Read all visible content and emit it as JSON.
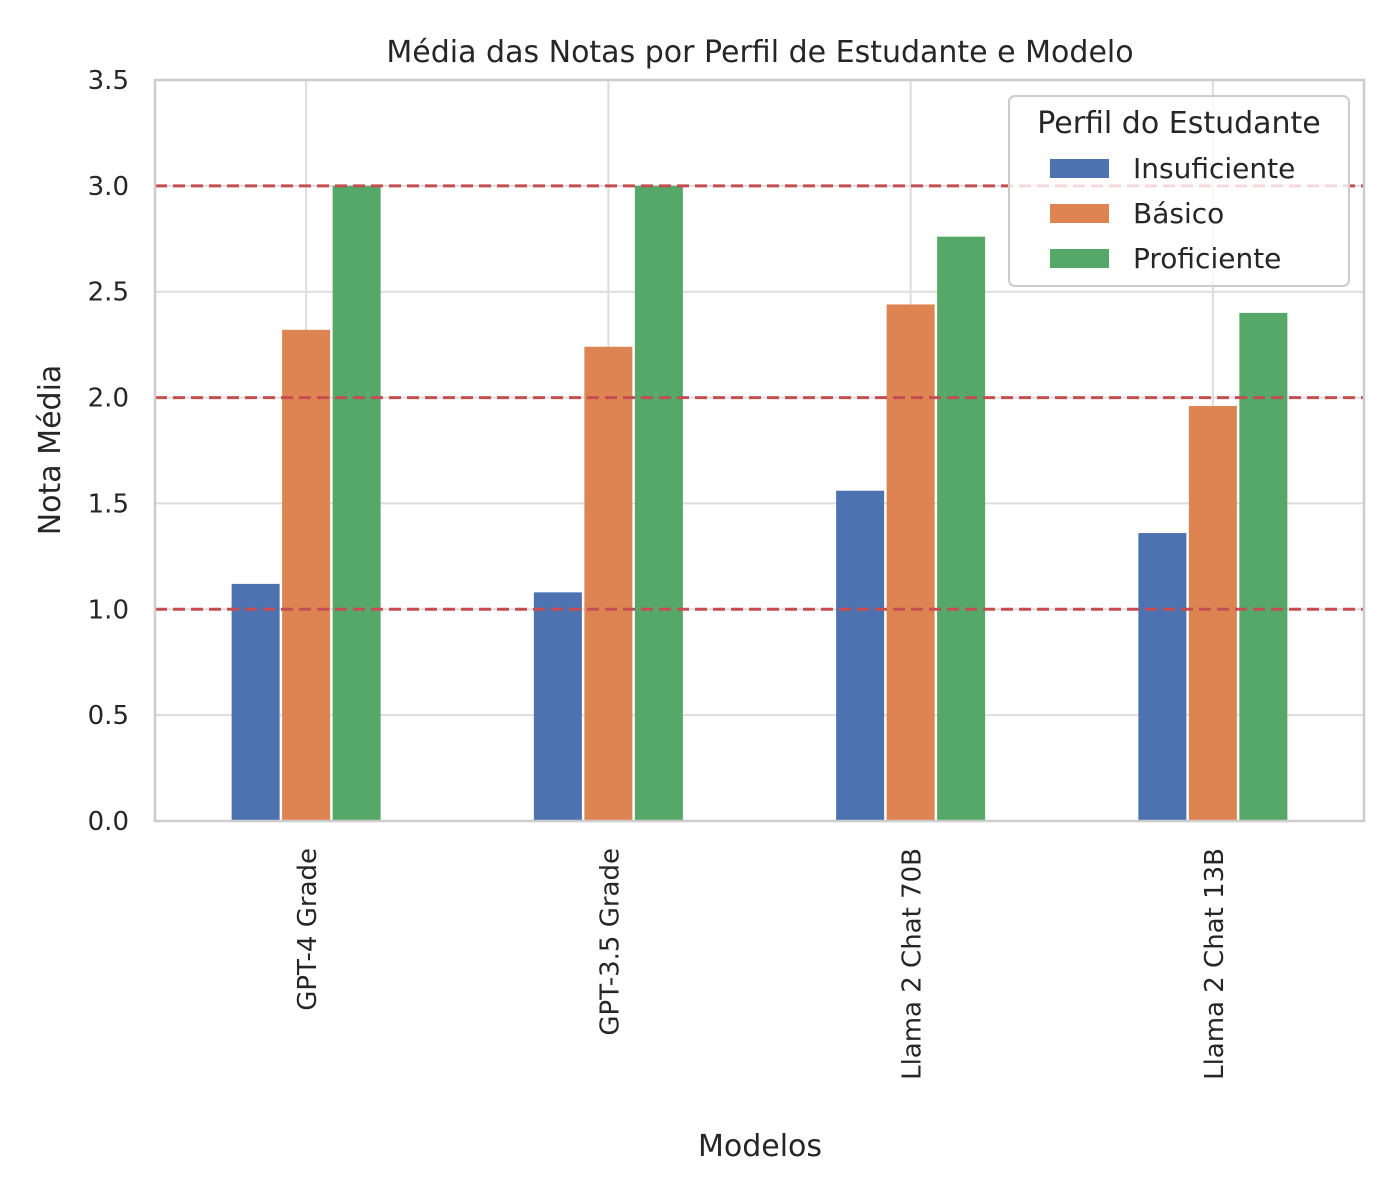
{
  "chart_data": {
    "type": "bar",
    "title": "Média das Notas por Perfil de Estudante e Modelo",
    "xlabel": "Modelos",
    "ylabel": "Nota Média",
    "categories": [
      "GPT-4 Grade",
      "GPT-3.5 Grade",
      "Llama 2 Chat 70B",
      "Llama 2 Chat 13B"
    ],
    "series": [
      {
        "name": "Insuficiente",
        "color": "#4c72b0",
        "values": [
          1.12,
          1.08,
          1.56,
          1.36
        ]
      },
      {
        "name": "Básico",
        "color": "#dd8452",
        "values": [
          2.32,
          2.24,
          2.44,
          1.96
        ]
      },
      {
        "name": "Proficiente",
        "color": "#55a868",
        "values": [
          3.0,
          3.0,
          2.76,
          2.4
        ]
      }
    ],
    "ylim": [
      0,
      3.5
    ],
    "yticks": [
      "0.0",
      "0.5",
      "1.0",
      "1.5",
      "2.0",
      "2.5",
      "3.0",
      "3.5"
    ],
    "reference_lines": [
      1.0,
      2.0,
      3.0
    ],
    "reference_line_color": "#c44e52",
    "grid": true,
    "legend": {
      "title": "Perfil do Estudante",
      "placement": "top-right"
    }
  }
}
